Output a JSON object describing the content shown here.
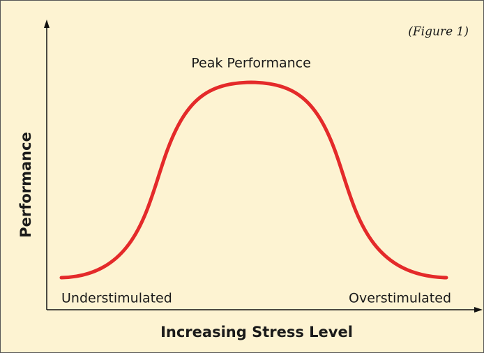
{
  "figure_label": "(Figure 1)",
  "curve_labels": {
    "peak": "Peak Performance",
    "low": "Understimulated",
    "high": "Overstimulated"
  },
  "axes": {
    "y_label": "Performance",
    "x_label": "Increasing Stress Level"
  }
}
